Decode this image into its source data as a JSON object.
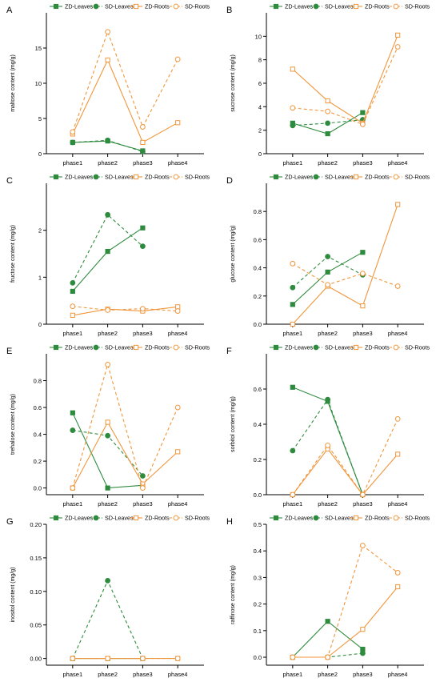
{
  "series_styles": {
    "ZD-Leaves": {
      "color": "#2e8b3e",
      "dash": false,
      "marker": "square",
      "filled": true
    },
    "SD-Leaves": {
      "color": "#2e8b3e",
      "dash": true,
      "marker": "circle",
      "filled": true
    },
    "ZD-Roots": {
      "color": "#f0963c",
      "dash": false,
      "marker": "square",
      "filled": false
    },
    "SD-Roots": {
      "color": "#f0963c",
      "dash": true,
      "marker": "circle",
      "filled": false
    }
  },
  "chart_data": [
    {
      "type": "line",
      "panel": "A",
      "ylabel": "maltose content (mg/g)",
      "categories": [
        "phase1",
        "phase2",
        "phase3",
        "phase4"
      ],
      "ylim": [
        0,
        20
      ],
      "yticks": [
        "0",
        "5",
        "10",
        "15"
      ],
      "ytick_values": [
        0,
        5,
        10,
        15
      ],
      "legend": [
        "ZD-Leaves",
        "SD-Leaves",
        "ZD-Roots",
        "SD-Roots"
      ],
      "series": [
        {
          "name": "ZD-Leaves",
          "values": [
            1.6,
            1.8,
            0.4,
            null
          ]
        },
        {
          "name": "SD-Leaves",
          "values": [
            1.6,
            1.9,
            0.3,
            null
          ]
        },
        {
          "name": "ZD-Roots",
          "values": [
            2.8,
            13.3,
            1.6,
            4.4
          ]
        },
        {
          "name": "SD-Roots",
          "values": [
            3.1,
            17.3,
            3.8,
            13.4
          ]
        }
      ]
    },
    {
      "type": "line",
      "panel": "B",
      "ylabel": "sucrose content (mg/g)",
      "categories": [
        "phase1",
        "phase2",
        "phase3",
        "phase4"
      ],
      "ylim": [
        0,
        12
      ],
      "yticks": [
        "0",
        "2",
        "4",
        "6",
        "8",
        "10"
      ],
      "ytick_values": [
        0,
        2,
        4,
        6,
        8,
        10
      ],
      "legend": [
        "ZD-Leaves",
        "SD-Leaves",
        "ZD-Roots",
        "SD-Roots"
      ],
      "series": [
        {
          "name": "ZD-Leaves",
          "values": [
            2.6,
            1.7,
            3.5,
            null
          ]
        },
        {
          "name": "SD-Leaves",
          "values": [
            2.4,
            2.6,
            2.9,
            null
          ]
        },
        {
          "name": "ZD-Roots",
          "values": [
            7.2,
            4.5,
            2.6,
            10.1
          ]
        },
        {
          "name": "SD-Roots",
          "values": [
            3.9,
            3.6,
            2.5,
            9.1
          ]
        }
      ]
    },
    {
      "type": "line",
      "panel": "C",
      "ylabel": "fructose content (mg/g)",
      "categories": [
        "phase1",
        "phase2",
        "phase3",
        "phase4"
      ],
      "ylim": [
        0,
        3
      ],
      "yticks": [
        "0",
        "1",
        "2"
      ],
      "ytick_values": [
        0,
        1,
        2
      ],
      "legend": [
        "ZD-Leaves",
        "SD-Leaves",
        "ZD-Roots",
        "SD-Roots"
      ],
      "series": [
        {
          "name": "ZD-Leaves",
          "values": [
            0.7,
            1.55,
            2.05,
            null
          ]
        },
        {
          "name": "SD-Leaves",
          "values": [
            0.88,
            2.33,
            1.66,
            null
          ]
        },
        {
          "name": "ZD-Roots",
          "values": [
            0.19,
            0.32,
            0.28,
            0.37
          ]
        },
        {
          "name": "SD-Roots",
          "values": [
            0.38,
            0.3,
            0.33,
            0.28
          ]
        }
      ]
    },
    {
      "type": "line",
      "panel": "D",
      "ylabel": "glucose content (mg/g)",
      "categories": [
        "phase1",
        "phase2",
        "phase3",
        "phase4"
      ],
      "ylim": [
        0,
        1.0
      ],
      "yticks": [
        "0.0",
        "0.2",
        "0.4",
        "0.6",
        "0.8"
      ],
      "ytick_values": [
        0,
        0.2,
        0.4,
        0.6,
        0.8
      ],
      "legend": [
        "ZD-Leaves",
        "SD-Leaves",
        "ZD-Roots",
        "SD-Roots"
      ],
      "series": [
        {
          "name": "ZD-Leaves",
          "values": [
            0.14,
            0.37,
            0.51,
            null
          ]
        },
        {
          "name": "SD-Leaves",
          "values": [
            0.26,
            0.48,
            0.35,
            null
          ]
        },
        {
          "name": "ZD-Roots",
          "values": [
            0.0,
            0.27,
            0.13,
            0.85
          ]
        },
        {
          "name": "SD-Roots",
          "values": [
            0.43,
            0.28,
            0.36,
            0.27
          ]
        }
      ]
    },
    {
      "type": "line",
      "panel": "E",
      "ylabel": "trehalose content (mg/g)",
      "categories": [
        "phase1",
        "phase2",
        "phase3",
        "phase4"
      ],
      "ylim": [
        -0.05,
        1.0
      ],
      "yticks": [
        "0.0",
        "0.2",
        "0.4",
        "0.6",
        "0.8"
      ],
      "ytick_values": [
        0,
        0.2,
        0.4,
        0.6,
        0.8
      ],
      "legend": [
        "ZD-Leaves",
        "SD-Leaves",
        "ZD-Roots",
        "SD-Roots"
      ],
      "series": [
        {
          "name": "ZD-Leaves",
          "values": [
            0.56,
            0.0,
            0.02,
            null
          ]
        },
        {
          "name": "SD-Leaves",
          "values": [
            0.43,
            0.39,
            0.09,
            null
          ]
        },
        {
          "name": "ZD-Roots",
          "values": [
            0.0,
            0.49,
            0.03,
            0.27
          ]
        },
        {
          "name": "SD-Roots",
          "values": [
            0.0,
            0.92,
            0.0,
            0.6
          ]
        }
      ]
    },
    {
      "type": "line",
      "panel": "F",
      "ylabel": "sorbitol content (mg/g)",
      "categories": [
        "phase1",
        "phase2",
        "phase3",
        "phase4"
      ],
      "ylim": [
        0,
        0.8
      ],
      "yticks": [
        "0.0",
        "0.2",
        "0.4",
        "0.6"
      ],
      "ytick_values": [
        0,
        0.2,
        0.4,
        0.6
      ],
      "legend": [
        "ZD-Leaves",
        "SD-Leaves",
        "ZD-Roots",
        "SD-Roots"
      ],
      "series": [
        {
          "name": "ZD-Leaves",
          "values": [
            0.61,
            0.53,
            0.0,
            null
          ]
        },
        {
          "name": "SD-Leaves",
          "values": [
            0.25,
            0.54,
            0.0,
            null
          ]
        },
        {
          "name": "ZD-Roots",
          "values": [
            0.0,
            0.26,
            0.0,
            0.23
          ]
        },
        {
          "name": "SD-Roots",
          "values": [
            0.0,
            0.28,
            0.0,
            0.43
          ]
        }
      ]
    },
    {
      "type": "line",
      "panel": "G",
      "ylabel": "inositol content (mg/g)",
      "categories": [
        "phase1",
        "phase2",
        "phase3",
        "phase4"
      ],
      "ylim": [
        -0.01,
        0.2
      ],
      "yticks": [
        "0.00",
        "0.05",
        "0.10",
        "0.15",
        "0.20"
      ],
      "ytick_values": [
        0,
        0.05,
        0.1,
        0.15,
        0.2
      ],
      "legend": [
        "ZD-Leaves",
        "SD-Leaves",
        "ZD-Roots",
        "SD-Roots"
      ],
      "series": [
        {
          "name": "ZD-Leaves",
          "values": [
            0.0,
            0.0,
            0.0,
            null
          ]
        },
        {
          "name": "SD-Leaves",
          "values": [
            0.0,
            0.116,
            0.0,
            null
          ]
        },
        {
          "name": "ZD-Roots",
          "values": [
            0.0,
            0.0,
            0.0,
            0.0
          ]
        },
        {
          "name": "SD-Roots",
          "values": [
            0.0,
            0.0,
            0.0,
            0.0
          ]
        }
      ]
    },
    {
      "type": "line",
      "panel": "H",
      "ylabel": "raffinose content (mg/g)",
      "categories": [
        "phase1",
        "phase2",
        "phase3",
        "phase4"
      ],
      "ylim": [
        -0.03,
        0.5
      ],
      "yticks": [
        "0.0",
        "0.1",
        "0.2",
        "0.3",
        "0.4",
        "0.5"
      ],
      "ytick_values": [
        0,
        0.1,
        0.2,
        0.3,
        0.4,
        0.5
      ],
      "legend": [
        "ZD-Leaves",
        "SD-Leaves",
        "ZD-Roots",
        "SD-Roots"
      ],
      "series": [
        {
          "name": "ZD-Leaves",
          "values": [
            0.0,
            0.135,
            0.03,
            null
          ]
        },
        {
          "name": "SD-Leaves",
          "values": [
            0.0,
            0.0,
            0.015,
            null
          ]
        },
        {
          "name": "ZD-Roots",
          "values": [
            0.0,
            0.0,
            0.105,
            0.265
          ]
        },
        {
          "name": "SD-Roots",
          "values": [
            0.0,
            0.0,
            0.42,
            0.318
          ]
        }
      ]
    }
  ]
}
